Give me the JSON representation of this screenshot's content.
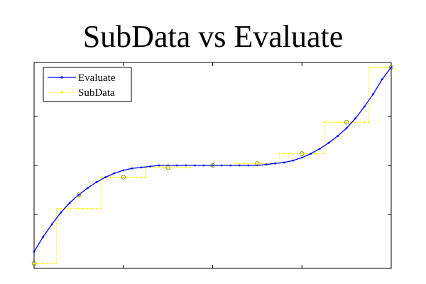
{
  "chart_data": {
    "type": "line",
    "title": "SubData vs Evaluate",
    "xlabel": "",
    "ylabel": "",
    "xlim": [
      0,
      1
    ],
    "ylim": [
      -1.05,
      1.05
    ],
    "grid": false,
    "legend_placement": "top-left",
    "series": [
      {
        "name": "Evaluate",
        "color": "#0000ff",
        "style": "solid line with dot markers",
        "x": [
          0.0,
          0.025,
          0.05,
          0.075,
          0.1,
          0.125,
          0.15,
          0.175,
          0.2,
          0.225,
          0.25,
          0.275,
          0.3,
          0.325,
          0.35,
          0.375,
          0.4,
          0.425,
          0.45,
          0.475,
          0.5,
          0.525,
          0.55,
          0.575,
          0.6,
          0.625,
          0.65,
          0.675,
          0.7,
          0.725,
          0.75,
          0.775,
          0.8,
          0.825,
          0.85,
          0.875,
          0.9,
          0.925,
          0.95,
          0.975,
          1.0
        ],
        "y": [
          -0.88,
          -0.73,
          -0.6,
          -0.48,
          -0.38,
          -0.3,
          -0.23,
          -0.17,
          -0.12,
          -0.08,
          -0.05,
          -0.03,
          -0.02,
          -0.01,
          0.0,
          0.0,
          0.0,
          0.0,
          0.0,
          0.0,
          0.0,
          0.0,
          0.0,
          0.0,
          0.0,
          0.0,
          0.01,
          0.02,
          0.03,
          0.05,
          0.08,
          0.12,
          0.17,
          0.23,
          0.3,
          0.38,
          0.48,
          0.6,
          0.73,
          0.88,
          1.0
        ]
      },
      {
        "name": "SubData",
        "color": "#ffff00",
        "style": "dotted staircase with dot markers",
        "x": [
          0.0,
          0.0625,
          0.0625,
          0.1875,
          0.1875,
          0.3125,
          0.3125,
          0.4375,
          0.4375,
          0.5625,
          0.5625,
          0.6875,
          0.6875,
          0.8125,
          0.8125,
          0.9375,
          0.9375,
          1.0
        ],
        "y": [
          -1.0,
          -1.0,
          -0.44,
          -0.44,
          -0.12,
          -0.12,
          -0.02,
          -0.02,
          0.0,
          0.0,
          0.02,
          0.02,
          0.12,
          0.12,
          0.44,
          0.44,
          1.0,
          1.0
        ]
      }
    ],
    "sample_points": {
      "x": [
        0.0,
        0.125,
        0.25,
        0.375,
        0.5,
        0.625,
        0.75,
        0.875,
        1.0
      ],
      "y": [
        -1.0,
        -0.3,
        -0.12,
        -0.02,
        0.0,
        0.02,
        0.12,
        0.44,
        1.0
      ]
    }
  }
}
